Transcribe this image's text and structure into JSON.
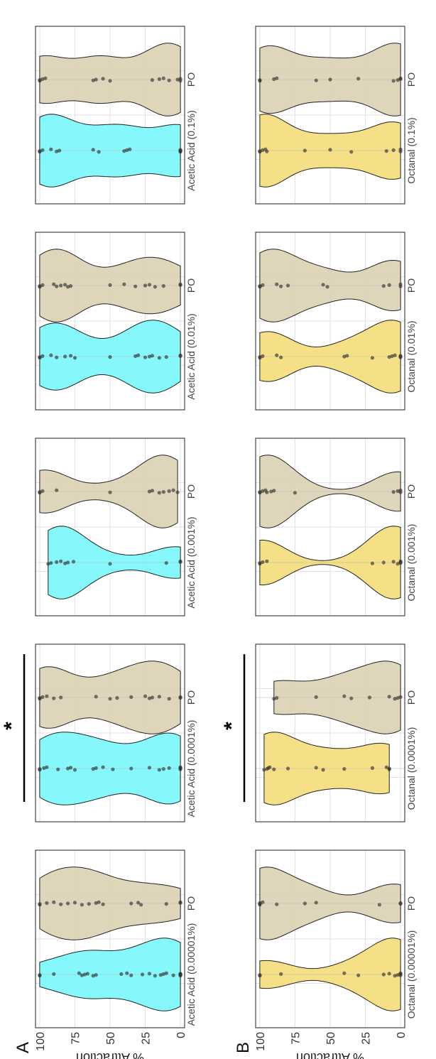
{
  "figure": {
    "orientation": "rotated-90-ccw",
    "panel_labels": [
      "A",
      "B"
    ]
  },
  "colors": {
    "acetic": "#80f7fa",
    "octanal": "#f6de81",
    "po": "#ddd3b7",
    "point": "#333333",
    "grid": "#e2e2e2",
    "frame": "#222222"
  },
  "chart_data": [
    {
      "type": "violin",
      "panel": "A",
      "ylabel": "% Attraction",
      "yticks": [
        0,
        25,
        50,
        75,
        100
      ],
      "ylim": [
        -3,
        103
      ],
      "grid": true,
      "facets": [
        {
          "id": "a1",
          "categories": [
            "Acetic Acid (0.00001%)",
            "PO"
          ],
          "series": [
            {
              "values": [
                100,
                100,
                90,
                72,
                70,
                68,
                66,
                62,
                60,
                42,
                38,
                35,
                27,
                22,
                18,
                14,
                12,
                10,
                5,
                0,
                0,
                0,
                0,
                0
              ]
            },
            {
              "values": [
                100,
                100,
                95,
                90,
                85,
                80,
                75,
                70,
                65,
                60,
                58,
                55,
                35,
                30,
                28,
                10,
                0,
                0
              ]
            }
          ]
        },
        {
          "id": "a2",
          "categories": [
            "Acetic Acid (0.0001%)",
            "PO"
          ],
          "significance": "*",
          "series": [
            {
              "values": [
                100,
                100,
                97,
                95,
                87,
                80,
                78,
                75,
                62,
                60,
                55,
                48,
                35,
                22,
                15,
                12,
                8,
                0,
                0,
                0,
                0
              ]
            },
            {
              "values": [
                100,
                100,
                98,
                95,
                90,
                85,
                60,
                50,
                45,
                35,
                25,
                22,
                20,
                15,
                8,
                0,
                0
              ]
            }
          ]
        },
        {
          "id": "a3",
          "categories": [
            "Acetic Acid (0.001%)",
            "PO"
          ],
          "series": [
            {
              "values": [
                94,
                92,
                88,
                85,
                82,
                80,
                76,
                50,
                10,
                0,
                0
              ]
            },
            {
              "values": [
                100,
                100,
                98,
                88,
                50,
                22,
                20,
                15,
                12,
                8,
                5,
                2
              ]
            }
          ]
        },
        {
          "id": "a4",
          "categories": [
            "Acetic Acid (0.01%)",
            "PO"
          ],
          "series": [
            {
              "values": [
                100,
                100,
                98,
                92,
                88,
                82,
                78,
                75,
                50,
                32,
                30,
                25,
                22,
                20,
                15,
                10,
                0,
                0
              ]
            },
            {
              "values": [
                100,
                100,
                98,
                90,
                88,
                85,
                82,
                80,
                78,
                50,
                40,
                32,
                25,
                22,
                18,
                12,
                0,
                0
              ]
            }
          ]
        },
        {
          "id": "a5",
          "categories": [
            "Acetic Acid (0.1%)",
            "PO"
          ],
          "series": [
            {
              "values": [
                100,
                100,
                98,
                92,
                88,
                86,
                62,
                58,
                40,
                38,
                36,
                0,
                0,
                0,
                0
              ]
            },
            {
              "values": [
                100,
                100,
                98,
                96,
                62,
                60,
                55,
                50,
                20,
                15,
                12,
                8,
                2,
                0,
                0
              ]
            }
          ]
        }
      ]
    },
    {
      "type": "violin",
      "panel": "B",
      "ylabel": "% Attraction",
      "yticks": [
        0,
        25,
        50,
        75,
        100
      ],
      "ylim": [
        -3,
        103
      ],
      "grid": true,
      "facets": [
        {
          "id": "b1",
          "categories": [
            "Octanal (0.00001%)",
            "PO"
          ],
          "series": [
            {
              "values": [
                100,
                100,
                85,
                40,
                30,
                12,
                8,
                4,
                2,
                0,
                0,
                0
              ]
            },
            {
              "values": [
                100,
                100,
                100,
                98,
                88,
                68,
                60,
                15,
                0,
                0
              ]
            }
          ]
        },
        {
          "id": "b2",
          "categories": [
            "Octanal (0.0001%)",
            "PO"
          ],
          "significance": "*",
          "series": [
            {
              "values": [
                97,
                95,
                94,
                93,
                90,
                80,
                60,
                55,
                40,
                20,
                10,
                8,
                8
              ]
            },
            {
              "values": [
                90,
                88,
                60,
                40,
                35,
                22,
                8,
                4,
                2,
                0
              ]
            }
          ]
        },
        {
          "id": "b3",
          "categories": [
            "Octanal (0.001%)",
            "PO"
          ],
          "series": [
            {
              "values": [
                100,
                100,
                98,
                95,
                20,
                12,
                5,
                2,
                0,
                0,
                0
              ]
            },
            {
              "values": [
                100,
                100,
                98,
                96,
                95,
                92,
                90,
                75,
                5,
                2,
                0,
                0
              ]
            }
          ]
        },
        {
          "id": "b4",
          "categories": [
            "Octanal (0.01%)",
            "PO"
          ],
          "series": [
            {
              "values": [
                100,
                100,
                98,
                88,
                85,
                40,
                38,
                20,
                8,
                6,
                4,
                0,
                0,
                0
              ]
            },
            {
              "values": [
                100,
                100,
                98,
                88,
                85,
                80,
                55,
                52,
                12,
                8,
                0,
                0
              ]
            }
          ]
        },
        {
          "id": "b5",
          "categories": [
            "Octanal (0.1%)",
            "PO"
          ],
          "series": [
            {
              "values": [
                100,
                100,
                98,
                96,
                95,
                68,
                50,
                35,
                10,
                5,
                0,
                0
              ]
            },
            {
              "values": [
                100,
                100,
                90,
                88,
                60,
                50,
                30,
                5,
                2,
                0,
                0
              ]
            }
          ]
        }
      ]
    }
  ]
}
